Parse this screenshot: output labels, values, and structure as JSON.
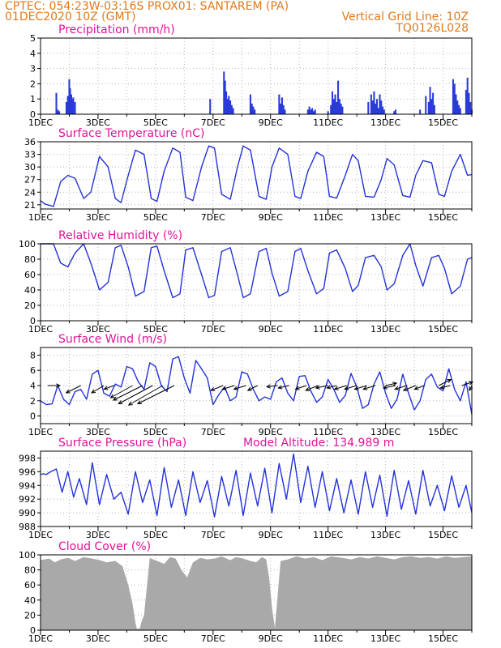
{
  "header": {
    "line1_left": "CPTEC:   054:23W-03:16S   PROX01: SANTAREM (PA)",
    "line2_left": "01DEC2020 10Z (GMT)",
    "line2_right": "Vertical Grid Line: 10Z",
    "line3_right": "TQ0126L028"
  },
  "colors": {
    "header_text": "#e07a1c",
    "panel_title": "#e0139a",
    "line": "#2433d6",
    "bars": "#2a3ad8",
    "cloud_fill": "#a9a9a9",
    "wind_arrow": "#000000"
  },
  "chart_data": [
    {
      "type": "bar",
      "title": "Precipitation (mm/h)",
      "x_tick_labels": [
        "1DEC",
        "3DEC",
        "5DEC",
        "7DEC",
        "9DEC",
        "11DEC",
        "13DEC",
        "15DEC"
      ],
      "x_range_days": [
        0,
        15
      ],
      "ylim": [
        0,
        5
      ],
      "yticks": [
        0,
        1,
        2,
        3,
        4,
        5
      ],
      "x": [
        0.55,
        0.6,
        0.65,
        0.9,
        0.95,
        1.0,
        1.03,
        1.07,
        1.1,
        1.14,
        1.2,
        5.9,
        6.38,
        6.42,
        6.46,
        6.5,
        6.55,
        6.6,
        6.65,
        6.7,
        7.3,
        7.35,
        7.4,
        7.45,
        8.3,
        8.35,
        8.4,
        8.45,
        8.5,
        9.3,
        9.35,
        9.4,
        9.45,
        9.5,
        9.55,
        10.0,
        10.1,
        10.15,
        10.2,
        10.25,
        10.3,
        10.35,
        10.4,
        10.45,
        10.5,
        11.4,
        11.5,
        11.55,
        11.6,
        11.65,
        11.7,
        11.75,
        11.8,
        11.85,
        11.9,
        11.95,
        12.3,
        12.35,
        13.2,
        13.4,
        13.5,
        13.55,
        13.6,
        13.65,
        13.7,
        14.35,
        14.4,
        14.45,
        14.5,
        14.55,
        14.6,
        14.8,
        14.85,
        14.9,
        14.95,
        15.0
      ],
      "values": [
        1.4,
        0.3,
        0.2,
        0.8,
        1.2,
        2.3,
        1.7,
        1.3,
        1.0,
        1.1,
        0.8,
        1.0,
        2.8,
        2.2,
        1.5,
        1.0,
        1.2,
        0.9,
        0.6,
        0.4,
        1.3,
        0.7,
        0.5,
        0.3,
        1.3,
        0.7,
        1.1,
        0.6,
        0.3,
        0.3,
        0.5,
        0.3,
        0.4,
        0.2,
        0.3,
        0.2,
        0.6,
        1.5,
        1.0,
        1.3,
        0.8,
        2.2,
        1.0,
        0.7,
        0.5,
        0.8,
        1.3,
        0.9,
        1.5,
        0.7,
        1.0,
        0.4,
        1.3,
        0.9,
        0.5,
        0.3,
        0.2,
        0.3,
        0.3,
        1.2,
        0.8,
        1.8,
        1.0,
        1.4,
        0.6,
        2.3,
        2.0,
        1.3,
        0.9,
        0.6,
        0.4,
        1.6,
        2.4,
        1.4,
        0.8,
        0.3
      ]
    },
    {
      "type": "line",
      "title": "Surface Temperature (nC)",
      "x_tick_labels": [
        "1DEC",
        "3DEC",
        "5DEC",
        "7DEC",
        "9DEC",
        "11DEC",
        "13DEC",
        "15DEC"
      ],
      "x_range_days": [
        0,
        15
      ],
      "ylim": [
        20,
        36
      ],
      "yticks": [
        21,
        24,
        27,
        30,
        33,
        36
      ],
      "x": [
        0,
        0.15,
        0.45,
        0.7,
        0.95,
        1.2,
        1.5,
        1.75,
        2.05,
        2.35,
        2.6,
        2.8,
        3.05,
        3.3,
        3.6,
        3.85,
        4.05,
        4.3,
        4.6,
        4.85,
        5.05,
        5.3,
        5.6,
        5.85,
        6.05,
        6.3,
        6.6,
        6.85,
        7.05,
        7.3,
        7.6,
        7.85,
        8.05,
        8.3,
        8.6,
        8.85,
        9.05,
        9.3,
        9.6,
        9.85,
        10.05,
        10.3,
        10.6,
        10.85,
        11.05,
        11.3,
        11.6,
        11.85,
        12.05,
        12.3,
        12.6,
        12.85,
        13.05,
        13.3,
        13.6,
        13.85,
        14.05,
        14.3,
        14.6,
        14.85,
        15.0
      ],
      "values": [
        22,
        21.2,
        20.6,
        26.5,
        28,
        27.3,
        22.5,
        24,
        32.5,
        30,
        22.5,
        21.5,
        28,
        34,
        33,
        22.5,
        21.8,
        29,
        34.5,
        33.5,
        22.8,
        22,
        30,
        35,
        34.5,
        23.5,
        22.3,
        30,
        35,
        34,
        23,
        22.3,
        30,
        34.5,
        33,
        23,
        22.5,
        29,
        33.5,
        32.5,
        23,
        22.6,
        28,
        33,
        31.5,
        23,
        22.8,
        27,
        32,
        30.5,
        23.2,
        22.8,
        28,
        31.5,
        31,
        23.5,
        23,
        29,
        33,
        28,
        28.2
      ]
    },
    {
      "type": "line",
      "title": "Relative Humidity (%)",
      "x_tick_labels": [
        "1DEC",
        "3DEC",
        "5DEC",
        "7DEC",
        "9DEC",
        "11DEC",
        "13DEC",
        "15DEC"
      ],
      "x_range_days": [
        0,
        15
      ],
      "ylim": [
        0,
        100
      ],
      "yticks": [
        0,
        20,
        40,
        60,
        80,
        100
      ],
      "x": [
        0,
        0.45,
        0.7,
        0.95,
        1.2,
        1.5,
        1.75,
        2.05,
        2.35,
        2.6,
        2.8,
        3.05,
        3.3,
        3.6,
        3.85,
        4.05,
        4.3,
        4.6,
        4.85,
        5.05,
        5.3,
        5.6,
        5.85,
        6.05,
        6.3,
        6.6,
        6.85,
        7.05,
        7.3,
        7.6,
        7.85,
        8.05,
        8.3,
        8.6,
        8.85,
        9.05,
        9.3,
        9.6,
        9.85,
        10.05,
        10.3,
        10.6,
        10.85,
        11.05,
        11.3,
        11.6,
        11.85,
        12.05,
        12.3,
        12.6,
        12.85,
        13.05,
        13.3,
        13.6,
        13.85,
        14.05,
        14.3,
        14.6,
        14.85,
        15.0
      ],
      "values": [
        100,
        100,
        75,
        70,
        88,
        100,
        75,
        40,
        50,
        95,
        98,
        70,
        32,
        38,
        95,
        97,
        65,
        30,
        35,
        92,
        95,
        60,
        30,
        33,
        90,
        95,
        60,
        30,
        35,
        90,
        94,
        62,
        32,
        38,
        90,
        94,
        65,
        35,
        42,
        88,
        92,
        68,
        38,
        46,
        82,
        85,
        70,
        40,
        48,
        85,
        100,
        72,
        45,
        82,
        85,
        68,
        35,
        45,
        80,
        82
      ]
    },
    {
      "type": "line",
      "title": "Surface Wind (m/s)",
      "x_tick_labels": [
        "1DEC",
        "3DEC",
        "5DEC",
        "7DEC",
        "9DEC",
        "11DEC",
        "13DEC",
        "15DEC"
      ],
      "x_range_days": [
        0,
        15
      ],
      "ylim": [
        -1,
        9
      ],
      "yticks": [
        0,
        2,
        4,
        6,
        8
      ],
      "x": [
        0,
        0.2,
        0.4,
        0.6,
        0.8,
        1.0,
        1.2,
        1.4,
        1.6,
        1.8,
        2.0,
        2.2,
        2.4,
        2.6,
        2.8,
        3.0,
        3.2,
        3.4,
        3.6,
        3.8,
        4.0,
        4.2,
        4.4,
        4.6,
        4.8,
        5.0,
        5.2,
        5.4,
        5.6,
        5.8,
        6.0,
        6.2,
        6.4,
        6.6,
        6.8,
        7.0,
        7.2,
        7.4,
        7.6,
        7.8,
        8.0,
        8.2,
        8.4,
        8.6,
        8.8,
        9.0,
        9.2,
        9.4,
        9.6,
        9.8,
        10.0,
        10.2,
        10.4,
        10.6,
        10.8,
        11.0,
        11.2,
        11.4,
        11.6,
        11.8,
        12.0,
        12.2,
        12.4,
        12.6,
        12.8,
        13.0,
        13.2,
        13.4,
        13.6,
        13.8,
        14.0,
        14.2,
        14.4,
        14.6,
        14.8,
        15.0
      ],
      "values": [
        2,
        1.5,
        1.6,
        4.0,
        2.2,
        1.5,
        3.2,
        3.5,
        2.2,
        5.5,
        6.0,
        3.0,
        2.6,
        4.2,
        3.8,
        6.5,
        6.2,
        4.5,
        3.5,
        7.0,
        6.5,
        4.0,
        3.2,
        7.5,
        7.8,
        5.0,
        3.0,
        7.3,
        6.2,
        5.0,
        1.5,
        2.8,
        3.8,
        2.0,
        2.5,
        5.8,
        5.5,
        3.5,
        2.0,
        2.5,
        2.2,
        4.5,
        5.0,
        3.0,
        2.0,
        5.2,
        5.3,
        3.3,
        1.8,
        2.5,
        4.8,
        3.5,
        1.8,
        2.7,
        5.6,
        3.8,
        1.0,
        1.5,
        4.2,
        5.8,
        3.0,
        1.0,
        2.2,
        5.5,
        3.0,
        0.8,
        2.0,
        4.8,
        5.5,
        3.8,
        3.3,
        6.2,
        3.5,
        2.0,
        4.5,
        0.2
      ],
      "arrows": {
        "x": [
          0.25,
          1.4,
          2.2,
          2.55,
          3.2,
          3.55,
          3.9,
          4.25,
          4.65,
          6.35,
          6.75,
          7.15,
          7.55,
          8.25,
          8.65,
          9.25,
          9.65,
          10.0,
          10.3,
          10.65,
          11.0,
          11.35,
          11.65,
          12.0,
          12.35,
          12.75,
          13.05,
          13.35,
          13.85,
          14.25,
          14.65,
          15.0
        ],
        "u": [
          1,
          -1.2,
          -1,
          -0.8,
          -1.8,
          -2.4,
          -2.8,
          -2.8,
          -3,
          -1,
          -1,
          -1,
          -0.8,
          -0.9,
          -0.9,
          -0.9,
          -1,
          -1,
          -0.8,
          -1,
          -1,
          -1,
          -1,
          0.9,
          -1,
          -1,
          -1,
          -0.8,
          1,
          -0.8,
          0.9,
          -0.2
        ],
        "v": [
          0,
          -0.6,
          -0.6,
          -0.3,
          -1,
          -1.2,
          -1.5,
          -1.6,
          -1.5,
          -0.4,
          -0.3,
          -0.3,
          -0.4,
          -0.1,
          -0.2,
          -0.3,
          -0.4,
          -0.2,
          -0.2,
          -0.3,
          -0.3,
          -0.3,
          -0.3,
          0.2,
          -0.2,
          -0.3,
          -0.4,
          -0.3,
          0.5,
          -0.2,
          0.3,
          -0.4
        ]
      }
    },
    {
      "type": "line",
      "title": "Surface Pressure (hPa)",
      "annotation": "Model Altitude: 134.989 m",
      "x_tick_labels": [
        "1DEC",
        "3DEC",
        "5DEC",
        "7DEC",
        "9DEC",
        "11DEC",
        "13DEC",
        "15DEC"
      ],
      "x_range_days": [
        0,
        15
      ],
      "ylim": [
        988,
        999
      ],
      "yticks": [
        988,
        990,
        992,
        994,
        996,
        998
      ],
      "x": [
        0,
        0.1,
        0.2,
        0.35,
        0.55,
        0.75,
        0.95,
        1.15,
        1.35,
        1.6,
        1.8,
        2.05,
        2.3,
        2.55,
        2.8,
        3.05,
        3.3,
        3.55,
        3.8,
        4.05,
        4.3,
        4.55,
        4.8,
        5.05,
        5.3,
        5.55,
        5.8,
        6.05,
        6.3,
        6.55,
        6.8,
        7.05,
        7.3,
        7.55,
        7.8,
        8.05,
        8.3,
        8.55,
        8.8,
        9.05,
        9.3,
        9.55,
        9.8,
        10.05,
        10.3,
        10.55,
        10.8,
        11.05,
        11.3,
        11.55,
        11.8,
        12.05,
        12.3,
        12.55,
        12.8,
        13.05,
        13.3,
        13.55,
        13.8,
        14.05,
        14.3,
        14.55,
        14.8,
        15.0
      ],
      "values": [
        995.6,
        995.7,
        995.6,
        996.0,
        996.4,
        993.0,
        996.0,
        992.3,
        995.0,
        991.2,
        997.3,
        991.2,
        995.6,
        992.0,
        993.0,
        989.8,
        996.0,
        991.5,
        994.8,
        989.6,
        996.6,
        990.8,
        994.8,
        989.6,
        996.0,
        991.5,
        994.7,
        989.4,
        995.3,
        991.0,
        996.2,
        989.6,
        995.8,
        991.0,
        996.5,
        990.0,
        997.2,
        992.0,
        998.6,
        991.5,
        996.8,
        990.8,
        996.0,
        990.3,
        995.0,
        990.0,
        994.8,
        989.8,
        996.0,
        990.8,
        995.5,
        989.5,
        996.2,
        990.5,
        994.7,
        989.8,
        996.2,
        991.0,
        994.0,
        990.3,
        995.4,
        990.8,
        994.0,
        990.0
      ]
    },
    {
      "type": "area",
      "title": "Cloud Cover (%)",
      "x_tick_labels": [
        "1DEC",
        "3DEC",
        "5DEC",
        "7DEC",
        "9DEC",
        "11DEC",
        "13DEC",
        "15DEC"
      ],
      "x_range_days": [
        0,
        15
      ],
      "ylim": [
        0,
        100
      ],
      "yticks": [
        0,
        20,
        40,
        60,
        80,
        100
      ],
      "x": [
        0,
        0.3,
        0.5,
        0.7,
        0.95,
        1.2,
        1.5,
        1.8,
        2.05,
        2.3,
        2.6,
        2.85,
        3.05,
        3.2,
        3.3,
        3.35,
        3.45,
        3.5,
        3.6,
        3.8,
        4.05,
        4.3,
        4.5,
        4.7,
        4.9,
        5.1,
        5.3,
        5.55,
        5.8,
        6.05,
        6.3,
        6.6,
        6.8,
        7.05,
        7.3,
        7.5,
        7.7,
        7.85,
        7.95,
        8.05,
        8.15,
        8.35,
        8.6,
        8.9,
        9.2,
        9.5,
        9.8,
        10.1,
        10.5,
        10.8,
        11.1,
        11.4,
        11.7,
        12.0,
        12.3,
        12.6,
        12.9,
        13.2,
        13.5,
        13.8,
        14.1,
        14.4,
        14.7,
        15.0
      ],
      "values": [
        93,
        95,
        90,
        94,
        96,
        92,
        97,
        95,
        93,
        90,
        92,
        85,
        60,
        35,
        10,
        2,
        2,
        10,
        20,
        96,
        92,
        88,
        97,
        95,
        80,
        70,
        90,
        96,
        94,
        95,
        98,
        93,
        97,
        95,
        92,
        90,
        97,
        94,
        70,
        30,
        3,
        92,
        94,
        98,
        95,
        97,
        93,
        98,
        96,
        94,
        97,
        95,
        98,
        96,
        94,
        97,
        98,
        96,
        97,
        95,
        98,
        96,
        97,
        98
      ]
    }
  ]
}
